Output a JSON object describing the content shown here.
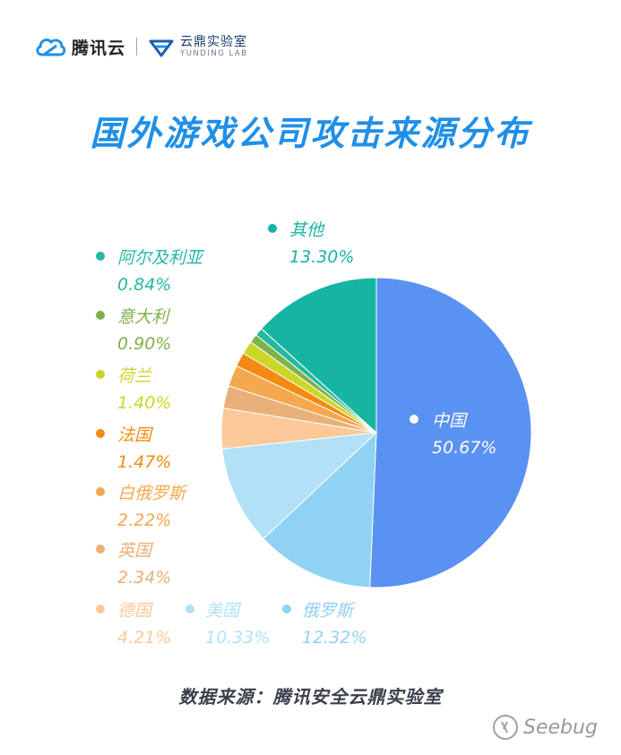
{
  "header": {
    "brand_tencent": "腾讯云",
    "brand_yunding_cn": "云鼎实验室",
    "brand_yunding_en": "YUNDING LAB"
  },
  "title": "国外游戏公司攻击来源分布",
  "footer": {
    "source": "数据来源：腾讯安全云鼎实验室",
    "watermark": "Seebug"
  },
  "chart_data": {
    "type": "pie",
    "title": "国外游戏公司攻击来源分布",
    "slices": [
      {
        "label": "中国",
        "value": 50.67,
        "display": "50.67%",
        "color": "#5a92f1"
      },
      {
        "label": "俄罗斯",
        "value": 12.32,
        "display": "12.32%",
        "color": "#8fd2f4"
      },
      {
        "label": "美国",
        "value": 10.33,
        "display": "10.33%",
        "color": "#b2e1f7"
      },
      {
        "label": "德国",
        "value": 4.21,
        "display": "4.21%",
        "color": "#fdc999"
      },
      {
        "label": "英国",
        "value": 2.34,
        "display": "2.34%",
        "color": "#e9b07a"
      },
      {
        "label": "白俄罗斯",
        "value": 2.22,
        "display": "2.22%",
        "color": "#f6a84e"
      },
      {
        "label": "法国",
        "value": 1.47,
        "display": "1.47%",
        "color": "#f48a0f"
      },
      {
        "label": "荷兰",
        "value": 1.4,
        "display": "1.40%",
        "color": "#cbd627"
      },
      {
        "label": "意大利",
        "value": 0.9,
        "display": "0.90%",
        "color": "#7eb24a"
      },
      {
        "label": "阿尔及利亚",
        "value": 0.84,
        "display": "0.84%",
        "color": "#27b8a0"
      },
      {
        "label": "其他",
        "value": 13.3,
        "display": "13.30%",
        "color": "#16b5a2"
      }
    ],
    "legend_placement": "around"
  }
}
